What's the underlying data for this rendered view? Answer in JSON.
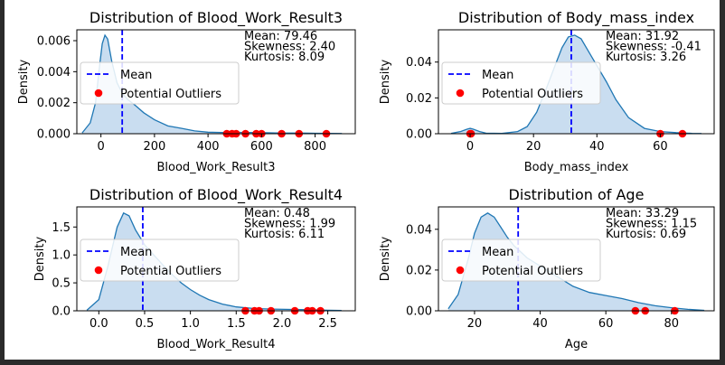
{
  "legend": {
    "mean_label": "Mean",
    "outlier_label": "Potential Outliers"
  },
  "colors": {
    "fill": "#c6dbef",
    "curve": "#1f77b4",
    "mean": "#0000ff",
    "outlier": "#ff0000"
  },
  "chart_data": [
    {
      "type": "area",
      "title": "Distribution of Blood_Work_Result3",
      "xlabel": "Blood_Work_Result3",
      "ylabel": "Density",
      "xlim": [
        -90,
        950
      ],
      "ylim": [
        0,
        0.0067
      ],
      "xticks": [
        0,
        200,
        400,
        600,
        800
      ],
      "xtick_labels": [
        "0",
        "200",
        "400",
        "600",
        "800"
      ],
      "yticks": [
        0,
        0.002,
        0.004,
        0.006
      ],
      "ytick_labels": [
        "0.000",
        "0.002",
        "0.004",
        "0.006"
      ],
      "curve_x": [
        -70,
        -40,
        -20,
        -5,
        5,
        15,
        25,
        40,
        60,
        80,
        100,
        130,
        160,
        200,
        250,
        300,
        350,
        400,
        450,
        500,
        550,
        600,
        650,
        700,
        750,
        800,
        850,
        900
      ],
      "curve_y": [
        5e-05,
        0.0007,
        0.002,
        0.0044,
        0.0058,
        0.00635,
        0.0061,
        0.0047,
        0.0033,
        0.0026,
        0.0022,
        0.0018,
        0.00135,
        0.0009,
        0.0005,
        0.00035,
        0.00018,
        0.0001,
        8e-05,
        9e-05,
        8e-05,
        7e-05,
        5e-05,
        4e-05,
        4e-05,
        3e-05,
        2e-05,
        1e-05
      ],
      "mean": 79.46,
      "outliers": [
        470,
        490,
        505,
        540,
        580,
        600,
        675,
        740,
        842
      ],
      "stats": [
        "Mean: 79.46",
        "Skewness: 2.40",
        "Kurtosis: 8.09"
      ]
    },
    {
      "type": "area",
      "title": "Distribution of Body_mass_index",
      "xlabel": "Body_mass_index",
      "ylabel": "Density",
      "xlim": [
        -10,
        77
      ],
      "ylim": [
        0,
        0.058
      ],
      "xticks": [
        0,
        20,
        40,
        60
      ],
      "xtick_labels": [
        "0",
        "20",
        "40",
        "60"
      ],
      "yticks": [
        0,
        0.02,
        0.04
      ],
      "ytick_labels": [
        "0.00",
        "0.02",
        "0.04"
      ],
      "curve_x": [
        -6,
        -3,
        -1,
        0,
        1,
        3,
        5,
        10,
        15,
        18,
        21,
        24,
        27,
        29,
        31,
        33,
        35,
        37,
        40,
        43,
        46,
        50,
        55,
        60,
        65,
        70,
        73
      ],
      "curve_y": [
        0.0002,
        0.0012,
        0.0025,
        0.003,
        0.0025,
        0.0012,
        0.0003,
        0.0002,
        0.0012,
        0.004,
        0.012,
        0.025,
        0.039,
        0.048,
        0.054,
        0.055,
        0.053,
        0.047,
        0.038,
        0.029,
        0.019,
        0.009,
        0.003,
        0.0012,
        0.0006,
        0.0002,
        0.0001
      ],
      "mean": 31.92,
      "outliers": [
        0,
        0.3,
        60,
        67
      ],
      "stats": [
        "Mean: 31.92",
        "Skewness: -0.41",
        "Kurtosis: 3.26"
      ]
    },
    {
      "type": "area",
      "title": "Distribution of Blood_Work_Result4",
      "xlabel": "Blood_Work_Result4",
      "ylabel": "Density",
      "xlim": [
        -0.24,
        2.8
      ],
      "ylim": [
        0,
        1.86
      ],
      "xticks": [
        0,
        0.5,
        1,
        1.5,
        2,
        2.5
      ],
      "xtick_labels": [
        "0.0",
        "0.5",
        "1.0",
        "1.5",
        "2.0",
        "2.5"
      ],
      "yticks": [
        0,
        0.5,
        1,
        1.5
      ],
      "ytick_labels": [
        "0.0",
        "0.5",
        "1.0",
        "1.5"
      ],
      "curve_x": [
        -0.13,
        0,
        0.1,
        0.2,
        0.27,
        0.33,
        0.4,
        0.5,
        0.6,
        0.7,
        0.8,
        0.9,
        1.0,
        1.1,
        1.2,
        1.35,
        1.5,
        1.7,
        1.9,
        2.1,
        2.3,
        2.5,
        2.65
      ],
      "curve_y": [
        0.01,
        0.2,
        0.8,
        1.5,
        1.75,
        1.7,
        1.45,
        1.18,
        1.0,
        0.82,
        0.65,
        0.5,
        0.38,
        0.28,
        0.2,
        0.12,
        0.07,
        0.04,
        0.03,
        0.025,
        0.02,
        0.01,
        0.005
      ],
      "mean": 0.48,
      "outliers": [
        1.6,
        1.7,
        1.75,
        1.88,
        2.14,
        2.28,
        2.33,
        2.42
      ],
      "stats": [
        "Mean: 0.48",
        "Skewness: 1.99",
        "Kurtosis: 6.11"
      ]
    },
    {
      "type": "area",
      "title": "Distribution of Age",
      "xlabel": "Age",
      "ylabel": "Density",
      "xlim": [
        9,
        93
      ],
      "ylim": [
        0,
        0.051
      ],
      "xticks": [
        20,
        40,
        60,
        80
      ],
      "xtick_labels": [
        "20",
        "40",
        "60",
        "80"
      ],
      "yticks": [
        0,
        0.02,
        0.04
      ],
      "ytick_labels": [
        "0.00",
        "0.02",
        "0.04"
      ],
      "curve_x": [
        12,
        15,
        18,
        20,
        22,
        24,
        26,
        28,
        30,
        32,
        34,
        36,
        40,
        45,
        50,
        55,
        60,
        65,
        70,
        75,
        80,
        85,
        90
      ],
      "curve_y": [
        0.001,
        0.008,
        0.025,
        0.038,
        0.046,
        0.048,
        0.046,
        0.041,
        0.036,
        0.032,
        0.029,
        0.026,
        0.022,
        0.017,
        0.012,
        0.009,
        0.0075,
        0.006,
        0.004,
        0.0025,
        0.0015,
        0.0007,
        0.0002
      ],
      "mean": 33.29,
      "outliers": [
        69,
        72,
        81
      ],
      "stats": [
        "Mean: 33.29",
        "Skewness: 1.15",
        "Kurtosis: 0.69"
      ]
    }
  ]
}
